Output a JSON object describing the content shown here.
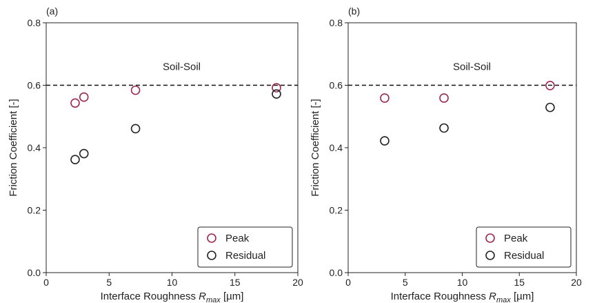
{
  "chart_data": [
    {
      "type": "scatter",
      "panel_label": "(a)",
      "annotation": "Soil-Soil",
      "xlabel": {
        "prefix": "Interface Roughness ",
        "symbol": "R",
        "subscript": "max",
        "suffix": " [µm]"
      },
      "ylabel": "Friction Coefficient [-]",
      "xlim": [
        0,
        20
      ],
      "ylim": [
        0.0,
        0.8
      ],
      "xticks": [
        0,
        5,
        10,
        15,
        20
      ],
      "yticks": [
        0.0,
        0.2,
        0.4,
        0.6,
        0.8
      ],
      "xtick_labels": [
        "0",
        "5",
        "10",
        "15",
        "20"
      ],
      "ytick_labels": [
        "0.0",
        "0.2",
        "0.4",
        "0.6",
        "0.8"
      ],
      "reference_line": {
        "y": 0.6,
        "style": "dashed",
        "color": "#111111"
      },
      "legend_position": "bottom-right",
      "series": [
        {
          "name": "Peak",
          "color": "#9b2750",
          "points": [
            [
              2.3,
              0.543
            ],
            [
              3.0,
              0.562
            ],
            [
              7.1,
              0.584
            ],
            [
              18.3,
              0.592
            ]
          ]
        },
        {
          "name": "Residual",
          "color": "#222222",
          "points": [
            [
              2.3,
              0.362
            ],
            [
              3.0,
              0.381
            ],
            [
              7.1,
              0.461
            ],
            [
              18.3,
              0.572
            ]
          ]
        }
      ]
    },
    {
      "type": "scatter",
      "panel_label": "(b)",
      "annotation": "Soil-Soil",
      "xlabel": {
        "prefix": "Interface Roughness ",
        "symbol": "R",
        "subscript": "max",
        "suffix": " [µm]"
      },
      "ylabel": "Friction Coefficient [-]",
      "xlim": [
        0,
        20
      ],
      "ylim": [
        0.0,
        0.8
      ],
      "xticks": [
        0,
        5,
        10,
        15,
        20
      ],
      "yticks": [
        0.0,
        0.2,
        0.4,
        0.6,
        0.8
      ],
      "xtick_labels": [
        "0",
        "5",
        "10",
        "15",
        "20"
      ],
      "ytick_labels": [
        "0.0",
        "0.2",
        "0.4",
        "0.6",
        "0.8"
      ],
      "reference_line": {
        "y": 0.6,
        "style": "dashed",
        "color": "#111111"
      },
      "legend_position": "bottom-right",
      "series": [
        {
          "name": "Peak",
          "color": "#9b2750",
          "points": [
            [
              3.2,
              0.559
            ],
            [
              8.4,
              0.559
            ],
            [
              17.7,
              0.599
            ]
          ]
        },
        {
          "name": "Residual",
          "color": "#222222",
          "points": [
            [
              3.2,
              0.422
            ],
            [
              8.4,
              0.463
            ],
            [
              17.7,
              0.529
            ]
          ]
        }
      ]
    }
  ]
}
